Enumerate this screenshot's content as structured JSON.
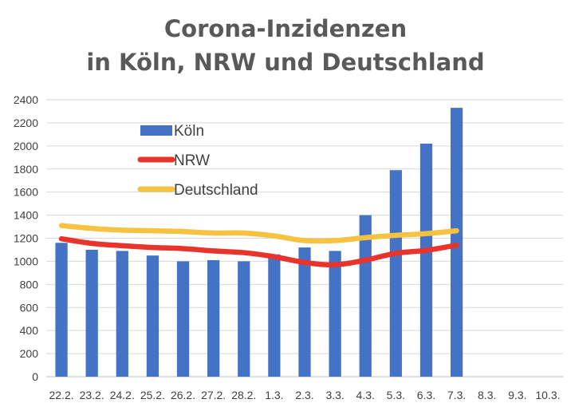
{
  "chart_data": {
    "type": "bar",
    "title": [
      "Corona-Inzidenzen",
      "in Köln, NRW und Deutschland"
    ],
    "xlabel": "",
    "ylabel": "",
    "ylim": [
      0,
      2400
    ],
    "yticks": [
      0,
      200,
      400,
      600,
      800,
      1000,
      1200,
      1400,
      1600,
      1800,
      2000,
      2200,
      2400
    ],
    "grid": true,
    "legend_position": "upper-left inside",
    "categories": [
      "22.2.",
      "23.2.",
      "24.2.",
      "25.2.",
      "26.2.",
      "27.2.",
      "28.2.",
      "1.3.",
      "2.3.",
      "3.3.",
      "4.3.",
      "5.3.",
      "6.3.",
      "7.3.",
      "8.3.",
      "9.3.",
      "10.3."
    ],
    "series": [
      {
        "name": "Köln",
        "kind": "bar",
        "color": "#4472c4",
        "values": [
          1160,
          1100,
          1090,
          1050,
          1000,
          1010,
          1000,
          1060,
          1120,
          1090,
          1400,
          1790,
          2020,
          2330,
          null,
          null,
          null
        ]
      },
      {
        "name": "NRW",
        "kind": "line",
        "color": "#e8342a",
        "values": [
          1195,
          1155,
          1135,
          1120,
          1110,
          1090,
          1075,
          1040,
          990,
          970,
          1010,
          1070,
          1095,
          1140,
          null,
          null,
          null
        ]
      },
      {
        "name": "Deutschland",
        "kind": "line",
        "color": "#f5c242",
        "values": [
          1310,
          1285,
          1270,
          1265,
          1258,
          1245,
          1245,
          1220,
          1180,
          1180,
          1205,
          1225,
          1240,
          1265,
          null,
          null,
          null
        ]
      }
    ]
  },
  "colors": {
    "grid": "#d9d9d9",
    "axis": "#bfbfbf",
    "title": "#595959"
  }
}
